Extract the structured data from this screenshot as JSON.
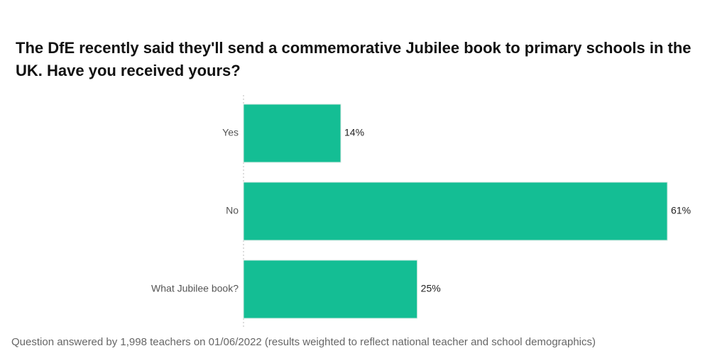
{
  "chart_data": {
    "type": "bar",
    "orientation": "horizontal",
    "title": "The DfE recently said they'll send a commemorative Jubilee book to primary schools in the UK. Have you received yours?",
    "categories": [
      "Yes",
      "No",
      "What Jubilee book?"
    ],
    "values": [
      14,
      61,
      25
    ],
    "value_labels": [
      "14%",
      "61%",
      "25%"
    ],
    "color": "#14be94",
    "note": "Question answered by 1,998 teachers on 01/06/2022 (results weighted to reflect national teacher and school demographics)"
  }
}
